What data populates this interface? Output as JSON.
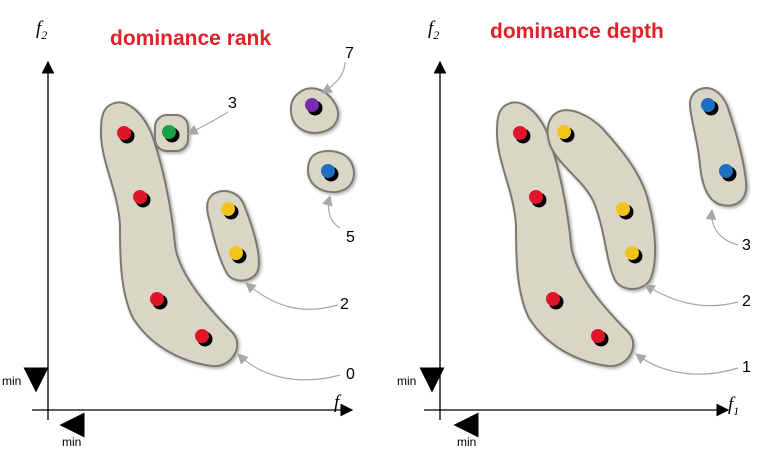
{
  "panels": [
    {
      "title": "dominance rank",
      "y_axis": {
        "main": "f",
        "sub": "2"
      },
      "x_axis": {
        "main": "f",
        "sub": "1"
      },
      "min_label": "min",
      "min_x_label": "min",
      "callouts": [
        "3",
        "7",
        "5",
        "2",
        "0"
      ]
    },
    {
      "title": "dominance depth",
      "y_axis": {
        "main": "f",
        "sub": "2"
      },
      "x_axis": {
        "main": "f",
        "sub": "1"
      },
      "min_label": "min",
      "min_x_label": "min",
      "callouts": [
        "3",
        "2",
        "1"
      ]
    }
  ],
  "colors": {
    "title": "#e3202a",
    "blob_fill": "#d9d6c5",
    "blob_stroke": "#7a7a70",
    "red": "#e0152a",
    "green": "#1aa04a",
    "yellow": "#f3c51c",
    "purple": "#7a2bb0",
    "blue": "#1d6fc4"
  }
}
